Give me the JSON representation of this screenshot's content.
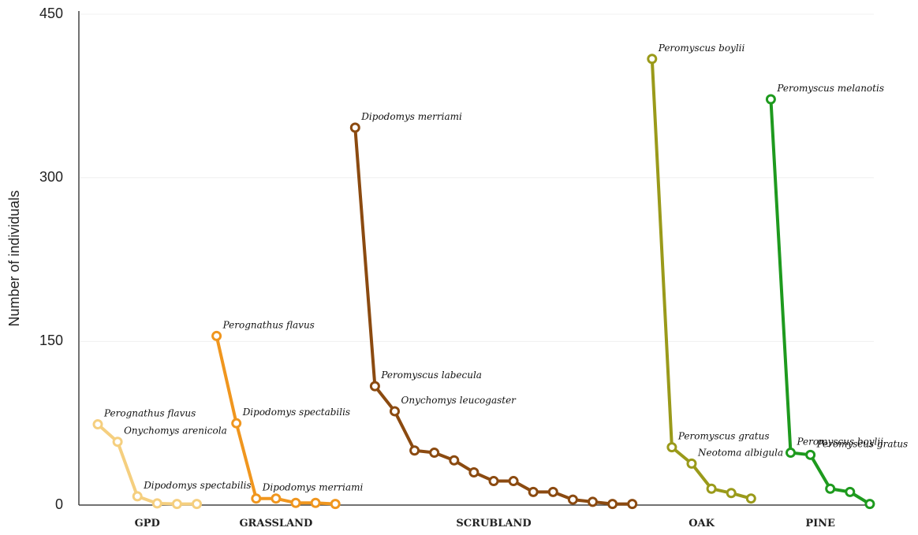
{
  "chart_data": {
    "type": "line",
    "y_label": "Number of individuals",
    "ylim": [
      0,
      450
    ],
    "yticks": [
      0,
      150,
      300,
      450
    ],
    "grid": true,
    "series": [
      {
        "name": "GPD",
        "color": "#f5cf7f",
        "x": [
          1,
          2,
          3,
          4,
          5,
          6
        ],
        "values": [
          74,
          58,
          8,
          1.5,
          1,
          1
        ],
        "point_labels": [
          "Perognathus flavus",
          "Onychomys arenicola",
          "Dipodomys spectabilis",
          null,
          null,
          null
        ]
      },
      {
        "name": "GRASSLAND",
        "color": "#f0961e",
        "x": [
          7,
          8,
          9,
          10,
          11,
          12,
          13
        ],
        "values": [
          155,
          75,
          6,
          6,
          2,
          2,
          1
        ],
        "point_labels": [
          "Perognathus flavus",
          "Dipodomys spectabilis",
          "Dipodomys merriami",
          null,
          null,
          null,
          null
        ]
      },
      {
        "name": "SCRUBLAND",
        "color": "#8b4a10",
        "x": [
          14,
          15,
          16,
          17,
          18,
          19,
          20,
          21,
          22,
          23,
          24,
          25,
          26,
          27,
          28
        ],
        "values": [
          346,
          109,
          86,
          50,
          48,
          41,
          30,
          22,
          22,
          12,
          12,
          5,
          3,
          1,
          1
        ],
        "point_labels": [
          "Dipodomys merriami",
          "Peromyscus labecula",
          "Onychomys leucogaster",
          null,
          null,
          null,
          null,
          null,
          null,
          null,
          null,
          null,
          null,
          null,
          null
        ]
      },
      {
        "name": "OAK",
        "color": "#9a9a1a",
        "x": [
          29,
          30,
          31,
          32,
          33,
          34
        ],
        "values": [
          409,
          53,
          38,
          15,
          11,
          6
        ],
        "point_labels": [
          "Peromyscus boylii",
          "Peromyscus gratus",
          "Neotoma albigula",
          null,
          null,
          null
        ]
      },
      {
        "name": "PINE",
        "color": "#1e9a1e",
        "x": [
          35,
          36,
          37,
          38,
          39,
          40
        ],
        "values": [
          372,
          48,
          46,
          15,
          12,
          1
        ],
        "point_labels": [
          "Peromyscus melanotis",
          "Peromyscus boylii",
          "Peromyscus gratus",
          null,
          null,
          null
        ]
      }
    ]
  }
}
